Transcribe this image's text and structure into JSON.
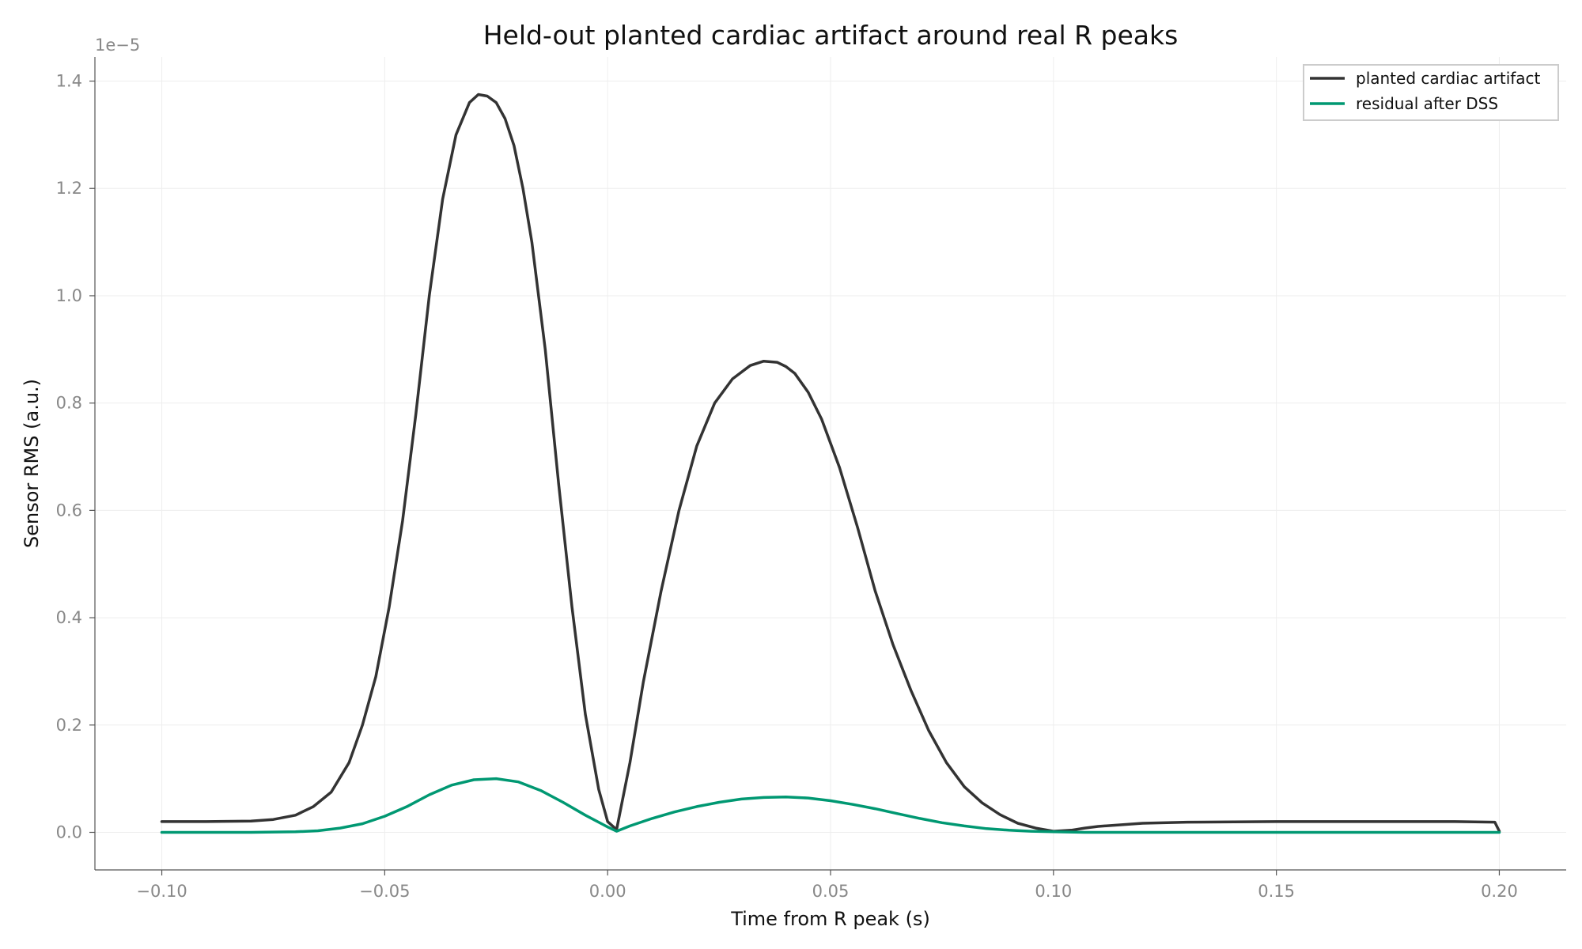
{
  "chart_data": {
    "type": "line",
    "title": "Held-out planted cardiac artifact around real R peaks",
    "xlabel": "Time from R peak (s)",
    "ylabel": "Sensor RMS (a.u.)",
    "y_offset_text": "1e−5",
    "xlim": [
      -0.115,
      0.215
    ],
    "ylim": [
      -0.07,
      1.445
    ],
    "x_ticks": [
      -0.1,
      -0.05,
      0.0,
      0.05,
      0.1,
      0.15,
      0.2
    ],
    "x_tick_labels": [
      "−0.10",
      "−0.05",
      "0.00",
      "0.05",
      "0.10",
      "0.15",
      "0.20"
    ],
    "y_ticks": [
      0.0,
      0.2,
      0.4,
      0.6,
      0.8,
      1.0,
      1.2,
      1.4
    ],
    "y_tick_labels": [
      "0.0",
      "0.2",
      "0.4",
      "0.6",
      "0.8",
      "1.0",
      "1.2",
      "1.4"
    ],
    "grid": true,
    "legend_position": "top-right",
    "series": [
      {
        "name": "planted cardiac artifact",
        "color": "#333333",
        "x": [
          -0.1,
          -0.09,
          -0.08,
          -0.075,
          -0.07,
          -0.066,
          -0.062,
          -0.058,
          -0.055,
          -0.052,
          -0.049,
          -0.046,
          -0.043,
          -0.04,
          -0.037,
          -0.034,
          -0.031,
          -0.029,
          -0.027,
          -0.025,
          -0.023,
          -0.021,
          -0.019,
          -0.017,
          -0.014,
          -0.011,
          -0.008,
          -0.005,
          -0.002,
          0.0,
          0.002,
          0.005,
          0.008,
          0.012,
          0.016,
          0.02,
          0.024,
          0.028,
          0.032,
          0.035,
          0.038,
          0.04,
          0.042,
          0.045,
          0.048,
          0.052,
          0.056,
          0.06,
          0.064,
          0.068,
          0.072,
          0.076,
          0.08,
          0.084,
          0.088,
          0.092,
          0.096,
          0.1,
          0.104,
          0.107,
          0.11,
          0.115,
          0.12,
          0.13,
          0.15,
          0.17,
          0.19,
          0.199,
          0.2
        ],
        "values": [
          0.02,
          0.02,
          0.021,
          0.024,
          0.032,
          0.048,
          0.075,
          0.13,
          0.2,
          0.29,
          0.42,
          0.58,
          0.78,
          1.0,
          1.18,
          1.3,
          1.36,
          1.375,
          1.372,
          1.36,
          1.33,
          1.28,
          1.2,
          1.1,
          0.9,
          0.65,
          0.42,
          0.22,
          0.08,
          0.02,
          0.005,
          0.13,
          0.28,
          0.45,
          0.6,
          0.72,
          0.8,
          0.845,
          0.87,
          0.878,
          0.876,
          0.868,
          0.855,
          0.82,
          0.77,
          0.68,
          0.57,
          0.45,
          0.35,
          0.265,
          0.19,
          0.13,
          0.085,
          0.055,
          0.033,
          0.017,
          0.008,
          0.002,
          0.004,
          0.008,
          0.011,
          0.014,
          0.017,
          0.019,
          0.02,
          0.02,
          0.02,
          0.019,
          0.002
        ]
      },
      {
        "name": "residual after DSS",
        "color": "#009872",
        "x": [
          -0.1,
          -0.08,
          -0.07,
          -0.065,
          -0.06,
          -0.055,
          -0.05,
          -0.045,
          -0.04,
          -0.035,
          -0.03,
          -0.025,
          -0.02,
          -0.015,
          -0.01,
          -0.005,
          0.0,
          0.002,
          0.005,
          0.01,
          0.015,
          0.02,
          0.025,
          0.03,
          0.035,
          0.04,
          0.045,
          0.05,
          0.055,
          0.06,
          0.065,
          0.07,
          0.075,
          0.08,
          0.085,
          0.09,
          0.095,
          0.1,
          0.107,
          0.12,
          0.15,
          0.2
        ],
        "values": [
          0.0,
          0.0,
          0.001,
          0.003,
          0.008,
          0.016,
          0.03,
          0.048,
          0.07,
          0.088,
          0.098,
          0.1,
          0.094,
          0.078,
          0.056,
          0.032,
          0.01,
          0.002,
          0.012,
          0.026,
          0.038,
          0.048,
          0.056,
          0.062,
          0.065,
          0.066,
          0.064,
          0.059,
          0.052,
          0.044,
          0.035,
          0.026,
          0.018,
          0.012,
          0.007,
          0.004,
          0.002,
          0.001,
          0.0,
          0.0,
          0.0,
          0.0
        ]
      }
    ]
  }
}
